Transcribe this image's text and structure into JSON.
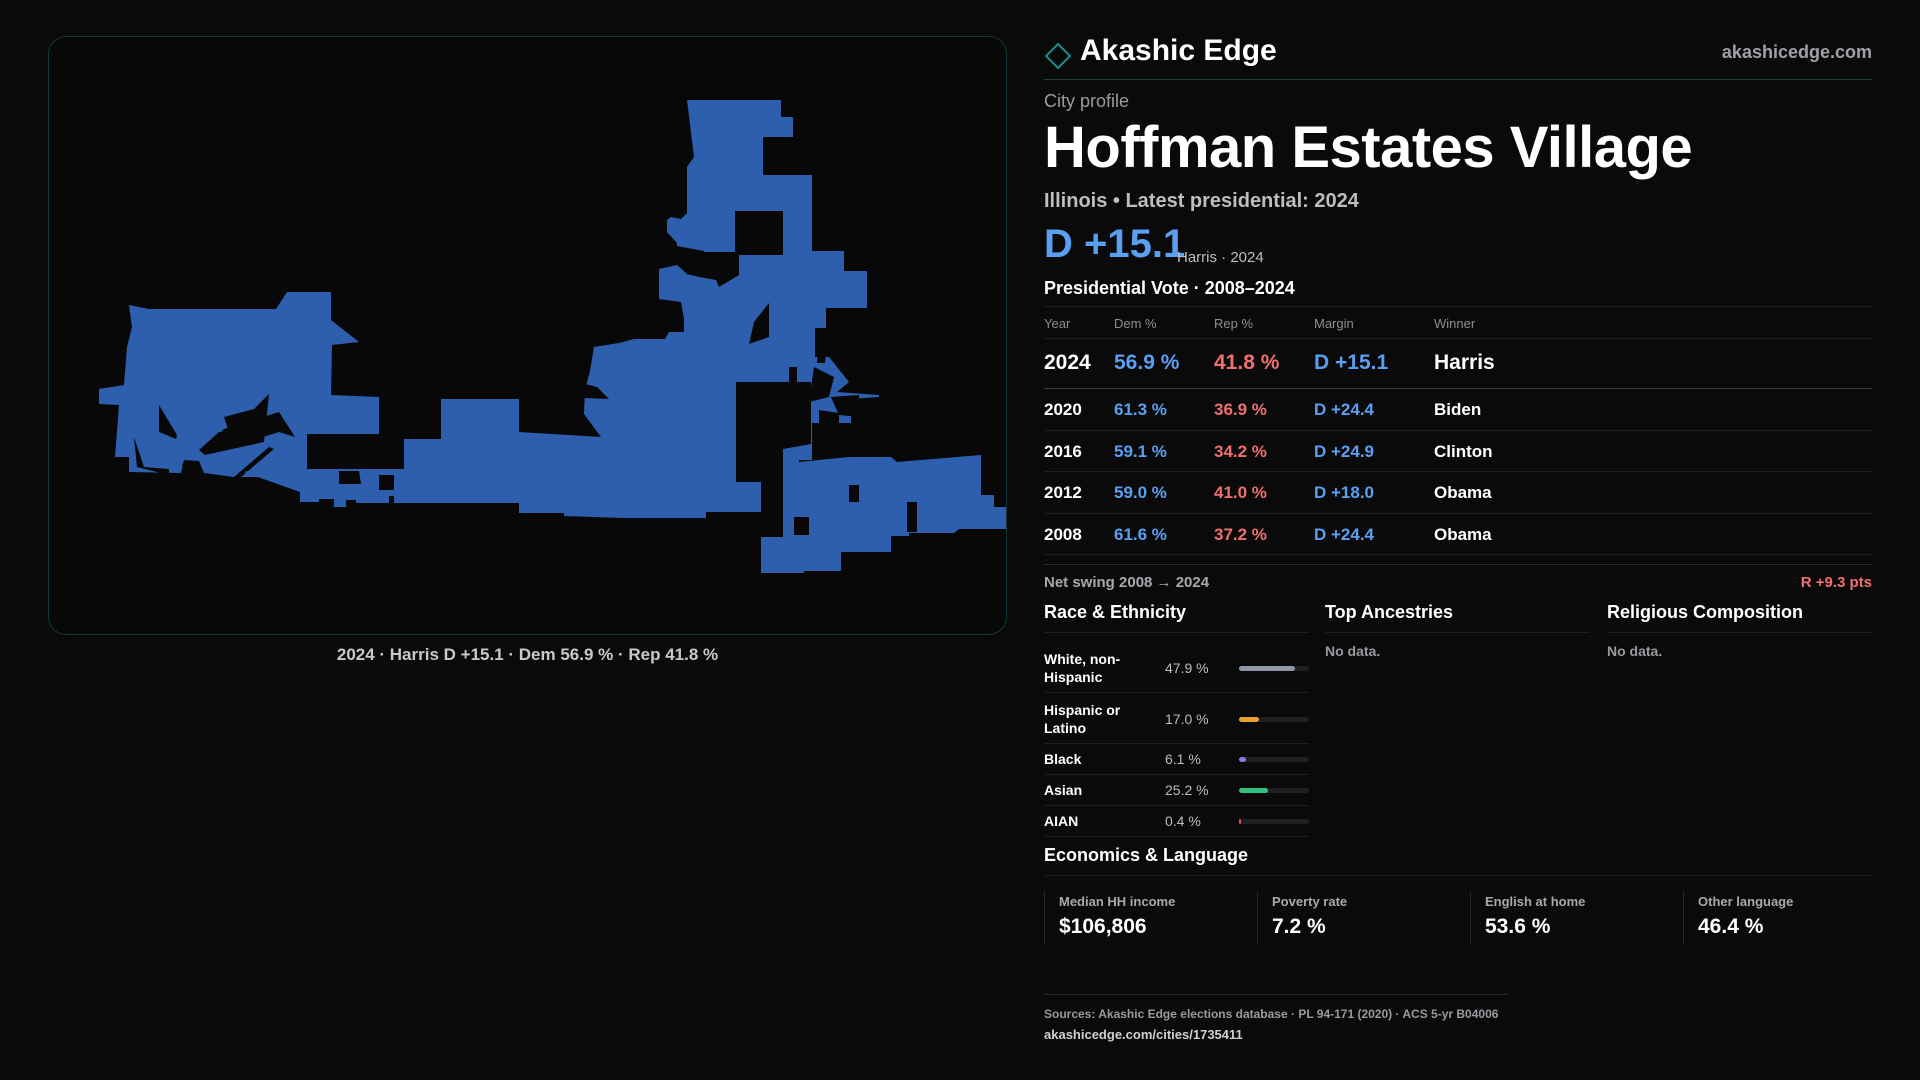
{
  "map": {
    "caption": "2024 · Harris D +15.1 · Dem 56.9 % · Rep 41.8 %",
    "fill_color": "#2e5fae",
    "border_color": "#12383d"
  },
  "header": {
    "brand_name": "Akashic Edge",
    "brand_url": "akashicedge.com",
    "logo_icon": "diamond-outline-icon"
  },
  "profile": {
    "kicker": "City profile",
    "title": "Hoffman Estates Village",
    "subtitle": "Illinois • Latest presidential: 2024",
    "headline_margin": "D +15.1",
    "headline_note": "Harris · 2024"
  },
  "vote": {
    "section_title": "Presidential Vote · 2008–2024",
    "columns": [
      "Year",
      "Dem %",
      "Rep %",
      "Margin",
      "Winner"
    ],
    "rows": [
      {
        "year": "2024",
        "dem": "56.9 %",
        "rep": "41.8 %",
        "margin": "D +15.1",
        "winner": "Harris"
      },
      {
        "year": "2020",
        "dem": "61.3 %",
        "rep": "36.9 %",
        "margin": "D +24.4",
        "winner": "Biden"
      },
      {
        "year": "2016",
        "dem": "59.1 %",
        "rep": "34.2 %",
        "margin": "D +24.9",
        "winner": "Clinton"
      },
      {
        "year": "2012",
        "dem": "59.0 %",
        "rep": "41.0 %",
        "margin": "D +18.0",
        "winner": "Obama"
      },
      {
        "year": "2008",
        "dem": "61.6 %",
        "rep": "37.2 %",
        "margin": "D +24.4",
        "winner": "Obama"
      }
    ],
    "swing_label": "Net swing 2008 → 2024",
    "swing_value": "R +9.3 pts",
    "dem_color": "#5aa0f2",
    "rep_color": "#f07070"
  },
  "race": {
    "title": "Race & Ethnicity",
    "items": [
      {
        "label": "White, non-Hispanic",
        "value": "47.9 %",
        "pct": 47.9,
        "color": "#8e96a8"
      },
      {
        "label": "Hispanic or Latino",
        "value": "17.0 %",
        "pct": 17.0,
        "color": "#e8a030"
      },
      {
        "label": "Black",
        "value": "6.1 %",
        "pct": 6.1,
        "color": "#8a7ae0"
      },
      {
        "label": "Asian",
        "value": "25.2 %",
        "pct": 25.2,
        "color": "#30c080"
      },
      {
        "label": "AIAN",
        "value": "0.4 %",
        "pct": 0.4,
        "color": "#e05050"
      }
    ]
  },
  "ancestries": {
    "title": "Top Ancestries",
    "empty": "No data."
  },
  "religion": {
    "title": "Religious Composition",
    "empty": "No data."
  },
  "economics": {
    "title": "Economics & Language",
    "cells": [
      {
        "label": "Median HH income",
        "value": "$106,806"
      },
      {
        "label": "Poverty rate",
        "value": "7.2 %"
      },
      {
        "label": "English at home",
        "value": "53.6 %"
      },
      {
        "label": "Other language",
        "value": "46.4 %"
      }
    ]
  },
  "sources": {
    "line": "Sources: Akashic Edge elections database · PL 94-171 (2020) · ACS 5-yr B04006",
    "url": "akashicedge.com/cities/1735411"
  }
}
